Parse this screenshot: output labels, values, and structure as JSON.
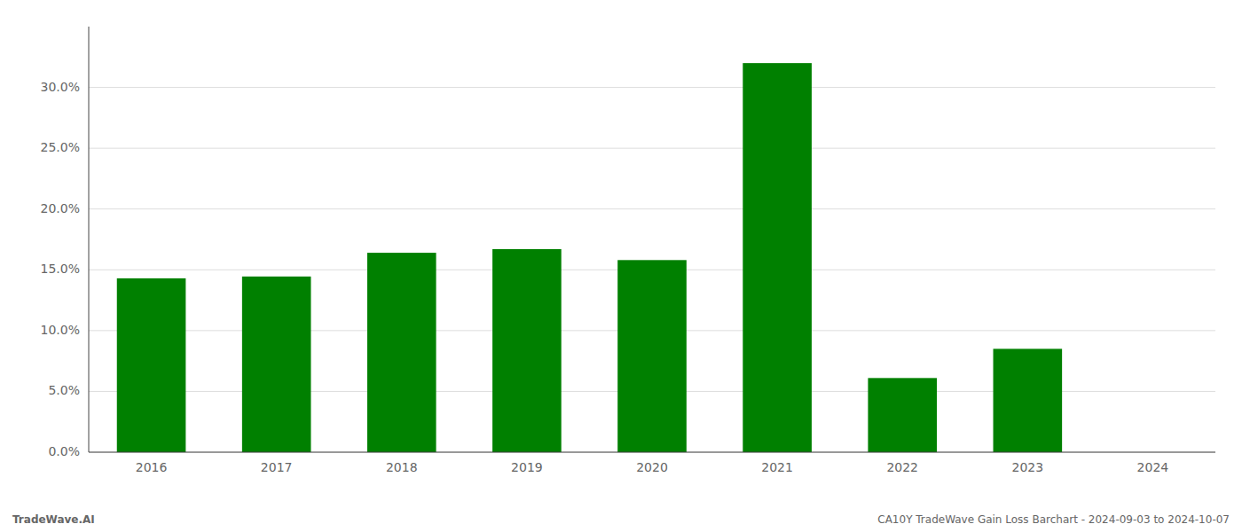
{
  "chart_data": {
    "type": "bar",
    "categories": [
      "2016",
      "2017",
      "2018",
      "2019",
      "2020",
      "2021",
      "2022",
      "2023",
      "2024"
    ],
    "values": [
      0.143,
      0.1445,
      0.164,
      0.167,
      0.158,
      0.32,
      0.061,
      0.085,
      0.0
    ],
    "color": "#008000",
    "ylim": [
      0,
      0.35
    ],
    "yticks": [
      {
        "value": 0.0,
        "label": "0.0%"
      },
      {
        "value": 0.05,
        "label": "5.0%"
      },
      {
        "value": 0.1,
        "label": "10.0%"
      },
      {
        "value": 0.15,
        "label": "15.0%"
      },
      {
        "value": 0.2,
        "label": "20.0%"
      },
      {
        "value": 0.25,
        "label": "25.0%"
      },
      {
        "value": 0.3,
        "label": "30.0%"
      }
    ],
    "grid": true,
    "annotations": [
      "TradeWave.AI",
      "CA10Y TradeWave Gain Loss Barchart - 2024-09-03 to 2024-10-07"
    ]
  }
}
